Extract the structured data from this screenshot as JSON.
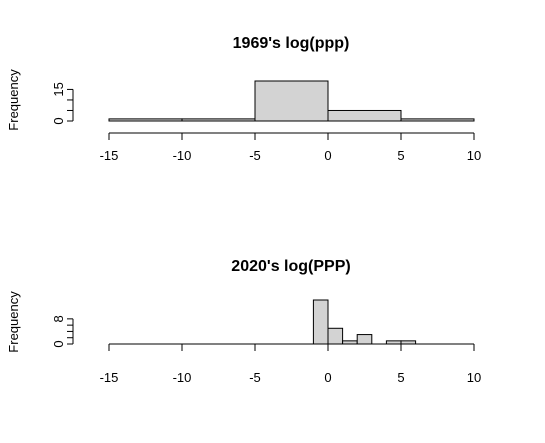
{
  "chart_data": [
    {
      "type": "bar",
      "title": "1969's log(ppp)",
      "ylabel": "Frequency",
      "xlabel": "",
      "xlim": [
        -15,
        10
      ],
      "x_ticks": [
        "-15",
        "-10",
        "-5",
        "0",
        "5",
        "10"
      ],
      "y_tick_labels": [
        "0",
        "15"
      ],
      "bins": [
        {
          "x0": -15,
          "x1": -10,
          "count": 1
        },
        {
          "x0": -10,
          "x1": -5,
          "count": 1
        },
        {
          "x0": -5,
          "x1": 0,
          "count": 19
        },
        {
          "x0": 0,
          "x1": 5,
          "count": 5
        },
        {
          "x0": 5,
          "x1": 10,
          "count": 1
        }
      ],
      "ylim": [
        0,
        19
      ]
    },
    {
      "type": "bar",
      "title": "2020's log(PPP)",
      "ylabel": "Frequency",
      "xlabel": "",
      "xlim": [
        -15,
        10
      ],
      "x_ticks": [
        "-15",
        "-10",
        "-5",
        "0",
        "5",
        "10"
      ],
      "y_tick_labels": [
        "0",
        "8"
      ],
      "bins": [
        {
          "x0": -1,
          "x1": 0,
          "count": 14
        },
        {
          "x0": 0,
          "x1": 1,
          "count": 5
        },
        {
          "x0": 1,
          "x1": 2,
          "count": 1
        },
        {
          "x0": 2,
          "x1": 3,
          "count": 3
        },
        {
          "x0": 3,
          "x1": 4,
          "count": 0
        },
        {
          "x0": 4,
          "x1": 5,
          "count": 1
        },
        {
          "x0": 5,
          "x1": 6,
          "count": 1
        }
      ],
      "ylim": [
        0,
        14
      ]
    }
  ]
}
